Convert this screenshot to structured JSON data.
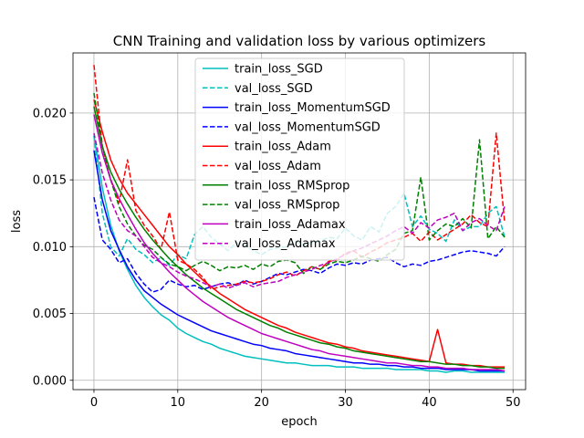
{
  "chart_data": {
    "type": "line",
    "title": "CNN Training and validation loss by various optimizers",
    "xlabel": "epoch",
    "ylabel": "loss",
    "xlim": [
      -2.5,
      51.5
    ],
    "ylim": [
      -0.0007,
      0.0245
    ],
    "xticks": [
      0,
      10,
      20,
      30,
      40,
      50
    ],
    "xtick_labels": [
      "0",
      "10",
      "20",
      "30",
      "40",
      "50"
    ],
    "yticks": [
      0.0,
      0.005,
      0.01,
      0.015,
      0.02
    ],
    "ytick_labels": [
      "0.000",
      "0.005",
      "0.010",
      "0.015",
      "0.020"
    ],
    "grid": true,
    "legend_position": "upper center",
    "series": [
      {
        "name": "train_loss_SGD",
        "color": "#00bfbf",
        "dash": "solid",
        "values": [
          0.0183,
          0.0144,
          0.0116,
          0.0097,
          0.0083,
          0.0071,
          0.0062,
          0.0055,
          0.0049,
          0.0045,
          0.0039,
          0.0035,
          0.0032,
          0.0029,
          0.0027,
          0.0024,
          0.0022,
          0.002,
          0.0018,
          0.0017,
          0.0016,
          0.0015,
          0.0014,
          0.0013,
          0.0013,
          0.0012,
          0.0011,
          0.0011,
          0.0011,
          0.001,
          0.001,
          0.001,
          0.0009,
          0.0009,
          0.0009,
          0.0009,
          0.0008,
          0.0008,
          0.0008,
          0.0008,
          0.0007,
          0.0007,
          0.0006,
          0.0007,
          0.0007,
          0.0006,
          0.0006,
          0.0006,
          0.0006,
          0.0006
        ]
      },
      {
        "name": "val_loss_SGD",
        "color": "#00bfbf",
        "dash": "dashed",
        "values": [
          0.0183,
          0.0125,
          0.01,
          0.0093,
          0.0106,
          0.0098,
          0.0094,
          0.0088,
          0.0092,
          0.0086,
          0.0094,
          0.0091,
          0.0109,
          0.0115,
          0.0107,
          0.0102,
          0.0097,
          0.0103,
          0.0101,
          0.0097,
          0.0094,
          0.0098,
          0.0099,
          0.01,
          0.0104,
          0.0101,
          0.0103,
          0.0104,
          0.0107,
          0.0106,
          0.0114,
          0.0108,
          0.0105,
          0.0115,
          0.0111,
          0.0125,
          0.013,
          0.014,
          0.0115,
          0.0123,
          0.0113,
          0.011,
          0.0104,
          0.012,
          0.0112,
          0.0115,
          0.0115,
          0.0125,
          0.013,
          0.0107
        ]
      },
      {
        "name": "train_loss_MomentumSGD",
        "color": "#0000ff",
        "dash": "solid",
        "values": [
          0.0172,
          0.0135,
          0.0112,
          0.0098,
          0.0085,
          0.0075,
          0.0067,
          0.0062,
          0.0057,
          0.0053,
          0.0049,
          0.0046,
          0.0043,
          0.004,
          0.0037,
          0.0035,
          0.0033,
          0.0031,
          0.0029,
          0.0027,
          0.0026,
          0.0024,
          0.0023,
          0.0022,
          0.002,
          0.0019,
          0.0018,
          0.0017,
          0.0016,
          0.0015,
          0.0014,
          0.0013,
          0.0013,
          0.0012,
          0.0012,
          0.0011,
          0.0011,
          0.001,
          0.001,
          0.0009,
          0.0009,
          0.0009,
          0.0008,
          0.0008,
          0.0008,
          0.0008,
          0.0007,
          0.0007,
          0.0007,
          0.0007
        ]
      },
      {
        "name": "val_loss_MomentumSGD",
        "color": "#0000ff",
        "dash": "dashed",
        "values": [
          0.0137,
          0.0105,
          0.0098,
          0.0088,
          0.0091,
          0.008,
          0.0072,
          0.0066,
          0.0068,
          0.0075,
          0.0072,
          0.007,
          0.0071,
          0.0068,
          0.007,
          0.0072,
          0.0073,
          0.0071,
          0.0075,
          0.0072,
          0.0074,
          0.0077,
          0.008,
          0.0079,
          0.0081,
          0.0083,
          0.0082,
          0.008,
          0.0084,
          0.0087,
          0.0086,
          0.0088,
          0.0087,
          0.009,
          0.0091,
          0.0092,
          0.0088,
          0.0085,
          0.0087,
          0.0086,
          0.0089,
          0.009,
          0.0092,
          0.0094,
          0.0096,
          0.0097,
          0.0096,
          0.0095,
          0.0093,
          0.01
        ]
      },
      {
        "name": "train_loss_Adam",
        "color": "#ff0000",
        "dash": "solid",
        "values": [
          0.021,
          0.0186,
          0.0165,
          0.0151,
          0.014,
          0.0132,
          0.0124,
          0.0116,
          0.0108,
          0.01,
          0.0094,
          0.0087,
          0.0081,
          0.0075,
          0.007,
          0.0065,
          0.0061,
          0.0057,
          0.0053,
          0.005,
          0.0047,
          0.0044,
          0.0041,
          0.0039,
          0.0036,
          0.0034,
          0.0032,
          0.003,
          0.0028,
          0.0027,
          0.0025,
          0.0024,
          0.0022,
          0.0021,
          0.002,
          0.0019,
          0.0018,
          0.0017,
          0.0016,
          0.0015,
          0.0014,
          0.0038,
          0.0013,
          0.0012,
          0.0012,
          0.0011,
          0.0011,
          0.001,
          0.001,
          0.001
        ]
      },
      {
        "name": "val_loss_Adam",
        "color": "#ff0000",
        "dash": "dashed",
        "values": [
          0.0236,
          0.0175,
          0.015,
          0.0133,
          0.0165,
          0.0127,
          0.0116,
          0.0108,
          0.0098,
          0.0126,
          0.009,
          0.0087,
          0.0083,
          0.0077,
          0.0068,
          0.007,
          0.0071,
          0.0072,
          0.0074,
          0.0073,
          0.0074,
          0.0076,
          0.0079,
          0.0081,
          0.0078,
          0.0082,
          0.0085,
          0.0083,
          0.0089,
          0.009,
          0.0095,
          0.0097,
          0.0092,
          0.0096,
          0.0099,
          0.0103,
          0.0105,
          0.0107,
          0.011,
          0.0104,
          0.0111,
          0.0105,
          0.0109,
          0.0113,
          0.0117,
          0.0124,
          0.0118,
          0.0115,
          0.0185,
          0.0118
        ]
      },
      {
        "name": "train_loss_RMSprop",
        "color": "#008000",
        "dash": "solid",
        "values": [
          0.0205,
          0.0175,
          0.0156,
          0.0143,
          0.0132,
          0.0122,
          0.0113,
          0.0105,
          0.0098,
          0.0091,
          0.0085,
          0.0079,
          0.0074,
          0.0069,
          0.0065,
          0.0061,
          0.0057,
          0.0053,
          0.005,
          0.0047,
          0.0044,
          0.0041,
          0.0039,
          0.0036,
          0.0034,
          0.0032,
          0.003,
          0.0028,
          0.0027,
          0.0025,
          0.0024,
          0.0022,
          0.0021,
          0.002,
          0.0019,
          0.0018,
          0.0017,
          0.0016,
          0.0015,
          0.0014,
          0.0014,
          0.0013,
          0.0012,
          0.0012,
          0.0011,
          0.0011,
          0.001,
          0.001,
          0.0009,
          0.0009
        ]
      },
      {
        "name": "val_loss_RMSprop",
        "color": "#008000",
        "dash": "dashed",
        "values": [
          0.0215,
          0.0175,
          0.015,
          0.013,
          0.0117,
          0.0108,
          0.0101,
          0.0098,
          0.0092,
          0.0087,
          0.0085,
          0.0082,
          0.0086,
          0.0089,
          0.0086,
          0.0082,
          0.0085,
          0.0084,
          0.0086,
          0.0083,
          0.0087,
          0.0085,
          0.0089,
          0.009,
          0.0088,
          0.008,
          0.0085,
          0.0083,
          0.0087,
          0.0089,
          0.0088,
          0.009,
          0.0093,
          0.0091,
          0.0089,
          0.0094,
          0.0098,
          0.011,
          0.0112,
          0.0152,
          0.0105,
          0.0112,
          0.0117,
          0.0115,
          0.0121,
          0.0114,
          0.018,
          0.0106,
          0.0115,
          0.0107
        ]
      },
      {
        "name": "train_loss_Adamax",
        "color": "#bf00bf",
        "dash": "solid",
        "values": [
          0.0199,
          0.017,
          0.015,
          0.0136,
          0.0124,
          0.0113,
          0.0103,
          0.0095,
          0.0088,
          0.0081,
          0.0075,
          0.0069,
          0.0064,
          0.0059,
          0.0055,
          0.0051,
          0.0047,
          0.0044,
          0.0041,
          0.0038,
          0.0035,
          0.0033,
          0.0031,
          0.0029,
          0.0027,
          0.0025,
          0.0023,
          0.0022,
          0.002,
          0.0019,
          0.0018,
          0.0017,
          0.0016,
          0.0015,
          0.0014,
          0.0013,
          0.0013,
          0.0012,
          0.0011,
          0.0011,
          0.001,
          0.001,
          0.0009,
          0.0009,
          0.0009,
          0.0008,
          0.0008,
          0.0008,
          0.0008,
          0.0007
        ]
      },
      {
        "name": "val_loss_Adamax",
        "color": "#bf00bf",
        "dash": "dashed",
        "values": [
          0.0185,
          0.0155,
          0.0135,
          0.012,
          0.0112,
          0.0108,
          0.01,
          0.0092,
          0.0088,
          0.0085,
          0.0081,
          0.0078,
          0.0076,
          0.0073,
          0.007,
          0.0072,
          0.0069,
          0.0071,
          0.0073,
          0.007,
          0.0072,
          0.0073,
          0.0074,
          0.0077,
          0.0079,
          0.0081,
          0.0083,
          0.0086,
          0.0088,
          0.0091,
          0.0094,
          0.0097,
          0.0099,
          0.0102,
          0.0105,
          0.0108,
          0.0112,
          0.0115,
          0.011,
          0.0118,
          0.0114,
          0.012,
          0.0122,
          0.0125,
          0.0112,
          0.0118,
          0.0121,
          0.0116,
          0.0112,
          0.013
        ]
      }
    ]
  }
}
